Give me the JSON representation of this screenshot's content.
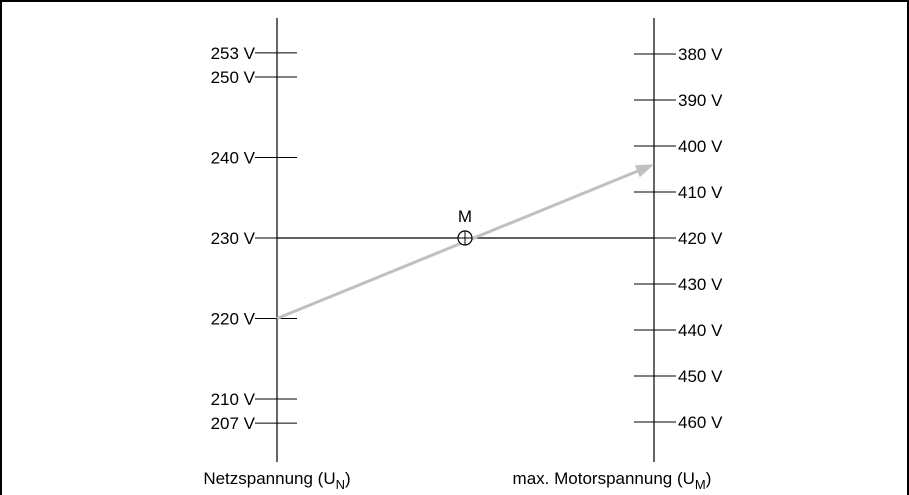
{
  "diagram": {
    "left_axis": {
      "title_main": "Netzspannung (U",
      "title_sub": "N",
      "title_end": ")",
      "ticks": [
        {
          "value": 253,
          "label": "253 V"
        },
        {
          "value": 250,
          "label": "250 V"
        },
        {
          "value": 240,
          "label": "240 V"
        },
        {
          "value": 230,
          "label": "230 V"
        },
        {
          "value": 220,
          "label": "220 V"
        },
        {
          "value": 210,
          "label": "210 V"
        },
        {
          "value": 207,
          "label": "207 V"
        }
      ]
    },
    "right_axis": {
      "title_main": "max. Motorspannung (U",
      "title_sub": "M",
      "title_end": ")",
      "ticks": [
        {
          "value": 380,
          "label": "380 V"
        },
        {
          "value": 390,
          "label": "390 V"
        },
        {
          "value": 400,
          "label": "400 V"
        },
        {
          "value": 410,
          "label": "410 V"
        },
        {
          "value": 420,
          "label": "420 V"
        },
        {
          "value": 430,
          "label": "430 V"
        },
        {
          "value": 440,
          "label": "440 V"
        },
        {
          "value": 450,
          "label": "450 V"
        },
        {
          "value": 460,
          "label": "460 V"
        }
      ]
    },
    "pivot_label": "M",
    "reference_line": {
      "left_value": 230,
      "right_value": 420
    },
    "arrow": {
      "from_left_value": 220,
      "to_right_value": 404
    },
    "colors": {
      "axis": "#000000",
      "arrow": "#c0c0c0",
      "border": "#000000"
    }
  }
}
